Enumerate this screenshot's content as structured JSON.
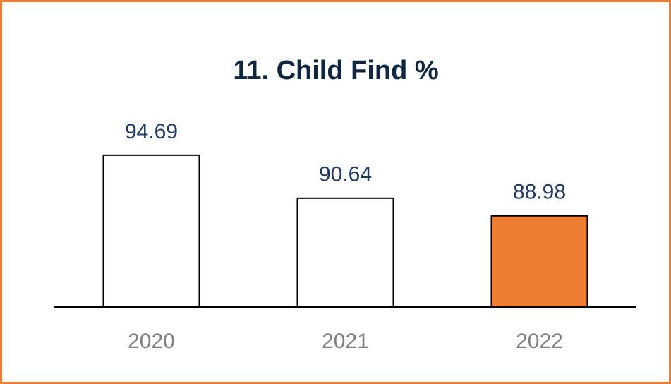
{
  "chart_data": {
    "type": "bar",
    "title": "11. Child Find %",
    "categories": [
      "2020",
      "2021",
      "2022"
    ],
    "values": [
      94.69,
      90.64,
      88.98
    ],
    "colors": [
      "#ffffff",
      "#ffffff",
      "#ed7d31"
    ],
    "ylim": [
      80.4,
      98
    ]
  }
}
